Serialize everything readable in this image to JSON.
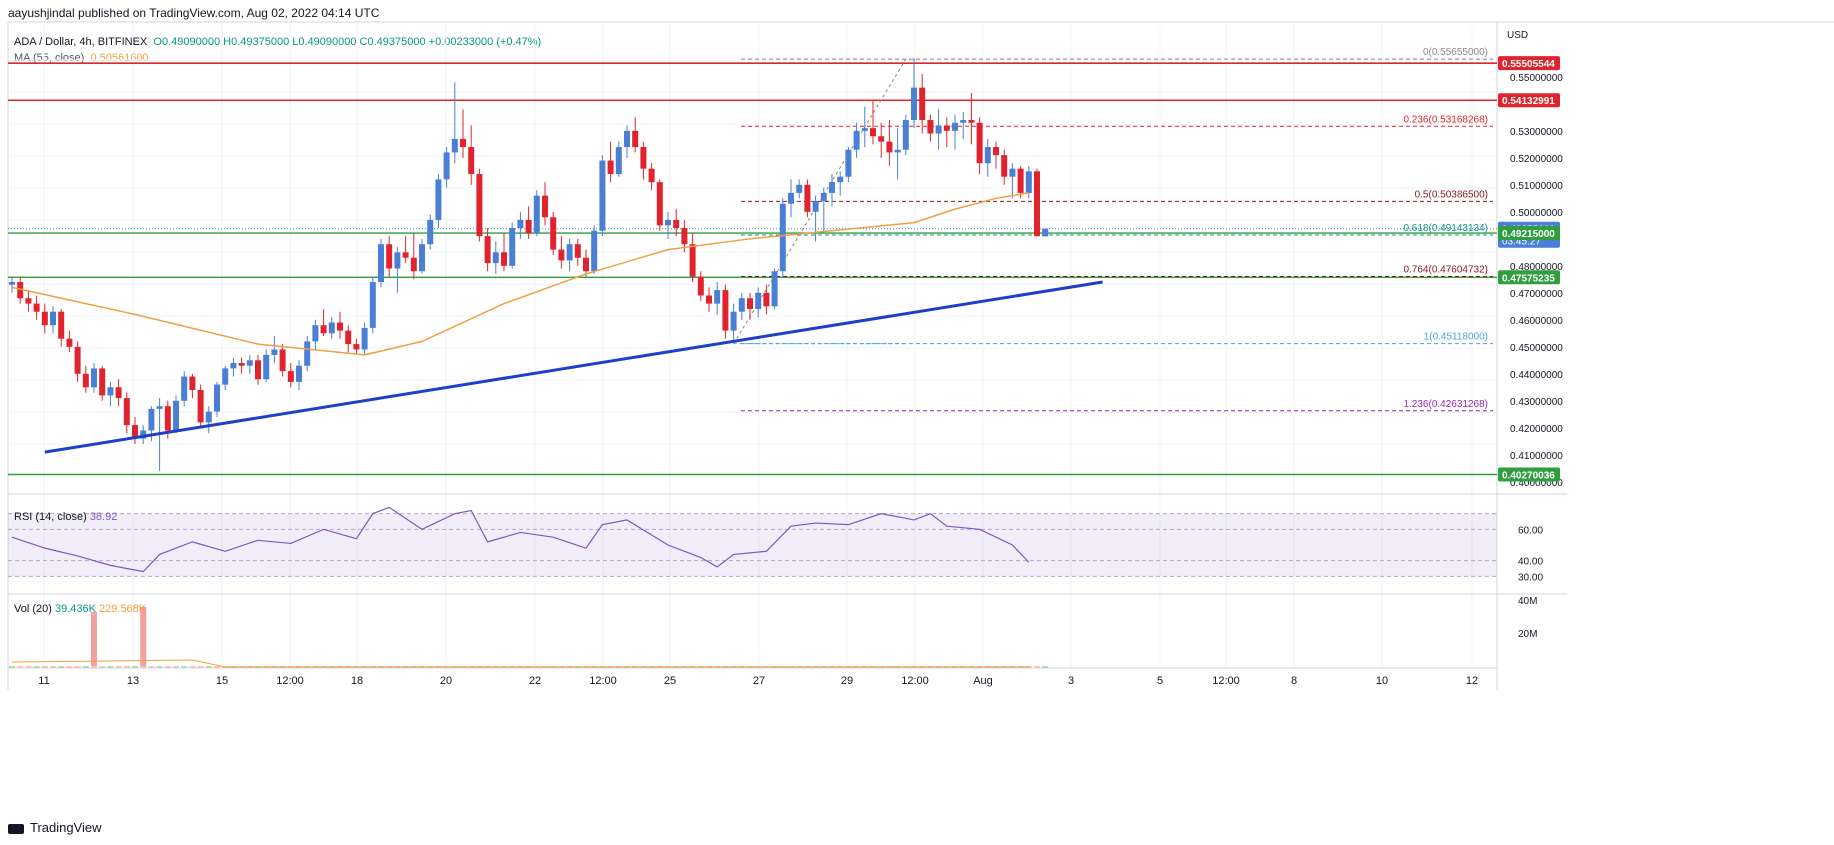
{
  "header": {
    "published": "aayushjindal published on TradingView.com, Aug 02, 2022 04:14 UTC",
    "symbol": "ADA / Dollar, 4h, BITFINEX",
    "ohlc": "O0.49090000 H0.49375000 L0.49090000 C0.49375000 +0.00233000 (+0.47%)",
    "ma_label": "MA (55, close)",
    "ma_value": "0.50561600",
    "rsi_label": "RSI (14, close)",
    "rsi_value": "38.92",
    "vol_label": "Vol (20)",
    "vol_value1": "39.436K",
    "vol_value2": "229.568K"
  },
  "footer": {
    "brand": "TradingView"
  },
  "colors": {
    "up": "#4a7fd4",
    "down": "#e0242e",
    "ma": "#f0a040",
    "rsi": "#7e57c2",
    "trend": "#1f3fc7",
    "support": "#2e9e3e",
    "resistance": "#e0242e"
  },
  "chart_data": {
    "type": "candlestick",
    "price_axis_label": "USD",
    "price_ticks": [
      "0.55000000",
      "0.53000000",
      "0.52000000",
      "0.51000000",
      "0.50000000",
      "0.48000000",
      "0.47000000",
      "0.46000000",
      "0.45000000",
      "0.44000000",
      "0.43000000",
      "0.42000000",
      "0.41000000",
      "0.40000000"
    ],
    "x_ticks": [
      "11",
      "13",
      "15",
      "12:00",
      "18",
      "20",
      "22",
      "12:00",
      "25",
      "27",
      "29",
      "12:00",
      "Aug",
      "3",
      "5",
      "12:00",
      "8",
      "10",
      "12"
    ],
    "price_badges": [
      {
        "value": "0.55505544",
        "kind": "resistance"
      },
      {
        "value": "0.54132991",
        "kind": "resistance"
      },
      {
        "value": "0.49375000",
        "kind": "last",
        "extra": "03:45:27"
      },
      {
        "value": "0.49215000",
        "kind": "support"
      },
      {
        "value": "0.47575235",
        "kind": "support"
      },
      {
        "value": "0.40270036",
        "kind": "support"
      }
    ],
    "horizontal_lines": [
      {
        "price": 0.55505544,
        "kind": "resistance"
      },
      {
        "price": 0.54132991,
        "kind": "resistance"
      },
      {
        "price": 0.49215,
        "kind": "support"
      },
      {
        "price": 0.47575235,
        "kind": "support"
      },
      {
        "price": 0.40270036,
        "kind": "support"
      }
    ],
    "fib_levels": [
      {
        "label": "0(0.55655000)",
        "price": 0.55655,
        "color": "#888888"
      },
      {
        "label": "0.236(0.53168268)",
        "price": 0.53168268,
        "color": "#e0242e"
      },
      {
        "label": "0.5(0.50386500)",
        "price": 0.503865,
        "color": "#8b1a1a"
      },
      {
        "label": "0.618(0.49143134)",
        "price": 0.49143134,
        "color": "#089981"
      },
      {
        "label": "0.764(0.47604732)",
        "price": 0.47604732,
        "color": "#8b1a1a"
      },
      {
        "label": "1(0.45118000)",
        "price": 0.45118,
        "color": "#4aa3df"
      },
      {
        "label": "1.236(0.42631268)",
        "price": 0.42631268,
        "color": "#9c27b0"
      }
    ],
    "trendline": {
      "start": {
        "bar": 4,
        "price": 0.411
      },
      "end": {
        "bar": 133,
        "price": 0.474
      }
    },
    "candles": [
      [
        0.473,
        0.476,
        0.47,
        0.474
      ],
      [
        0.474,
        0.476,
        0.466,
        0.468
      ],
      [
        0.468,
        0.471,
        0.463,
        0.466
      ],
      [
        0.466,
        0.469,
        0.46,
        0.463
      ],
      [
        0.463,
        0.466,
        0.455,
        0.458
      ],
      [
        0.458,
        0.465,
        0.455,
        0.463
      ],
      [
        0.463,
        0.464,
        0.45,
        0.453
      ],
      [
        0.453,
        0.456,
        0.448,
        0.45
      ],
      [
        0.45,
        0.452,
        0.437,
        0.44
      ],
      [
        0.44,
        0.443,
        0.433,
        0.435
      ],
      [
        0.435,
        0.444,
        0.433,
        0.442
      ],
      [
        0.442,
        0.443,
        0.43,
        0.432
      ],
      [
        0.432,
        0.437,
        0.428,
        0.435
      ],
      [
        0.435,
        0.438,
        0.428,
        0.431
      ],
      [
        0.431,
        0.433,
        0.418,
        0.421
      ],
      [
        0.421,
        0.424,
        0.414,
        0.416
      ],
      [
        0.416,
        0.421,
        0.414,
        0.419
      ],
      [
        0.419,
        0.428,
        0.415,
        0.427
      ],
      [
        0.427,
        0.431,
        0.404,
        0.428
      ],
      [
        0.428,
        0.43,
        0.416,
        0.419
      ],
      [
        0.419,
        0.432,
        0.418,
        0.43
      ],
      [
        0.43,
        0.441,
        0.428,
        0.439
      ],
      [
        0.439,
        0.44,
        0.431,
        0.434
      ],
      [
        0.434,
        0.436,
        0.42,
        0.422
      ],
      [
        0.422,
        0.428,
        0.418,
        0.426
      ],
      [
        0.426,
        0.437,
        0.424,
        0.436
      ],
      [
        0.436,
        0.443,
        0.434,
        0.442
      ],
      [
        0.442,
        0.446,
        0.439,
        0.444
      ],
      [
        0.444,
        0.446,
        0.44,
        0.443
      ],
      [
        0.443,
        0.447,
        0.44,
        0.445
      ],
      [
        0.445,
        0.447,
        0.436,
        0.438
      ],
      [
        0.438,
        0.449,
        0.437,
        0.447
      ],
      [
        0.447,
        0.454,
        0.444,
        0.449
      ],
      [
        0.449,
        0.451,
        0.439,
        0.441
      ],
      [
        0.441,
        0.444,
        0.435,
        0.437
      ],
      [
        0.437,
        0.445,
        0.434,
        0.443
      ],
      [
        0.443,
        0.454,
        0.441,
        0.452
      ],
      [
        0.452,
        0.46,
        0.449,
        0.458
      ],
      [
        0.458,
        0.464,
        0.454,
        0.455
      ],
      [
        0.455,
        0.461,
        0.453,
        0.459
      ],
      [
        0.459,
        0.463,
        0.453,
        0.456
      ],
      [
        0.456,
        0.458,
        0.448,
        0.451
      ],
      [
        0.451,
        0.453,
        0.447,
        0.449
      ],
      [
        0.449,
        0.459,
        0.447,
        0.457
      ],
      [
        0.457,
        0.476,
        0.455,
        0.474
      ],
      [
        0.474,
        0.49,
        0.472,
        0.488
      ],
      [
        0.488,
        0.491,
        0.476,
        0.479
      ],
      [
        0.479,
        0.487,
        0.47,
        0.485
      ],
      [
        0.485,
        0.491,
        0.481,
        0.483
      ],
      [
        0.483,
        0.492,
        0.475,
        0.478
      ],
      [
        0.478,
        0.49,
        0.477,
        0.488
      ],
      [
        0.488,
        0.499,
        0.486,
        0.497
      ],
      [
        0.497,
        0.514,
        0.494,
        0.512
      ],
      [
        0.512,
        0.524,
        0.509,
        0.522
      ],
      [
        0.522,
        0.548,
        0.518,
        0.527
      ],
      [
        0.527,
        0.538,
        0.52,
        0.524
      ],
      [
        0.524,
        0.532,
        0.51,
        0.514
      ],
      [
        0.514,
        0.516,
        0.489,
        0.491
      ],
      [
        0.491,
        0.494,
        0.478,
        0.481
      ],
      [
        0.481,
        0.489,
        0.477,
        0.485
      ],
      [
        0.485,
        0.492,
        0.478,
        0.48
      ],
      [
        0.48,
        0.496,
        0.479,
        0.494
      ],
      [
        0.494,
        0.5,
        0.49,
        0.497
      ],
      [
        0.497,
        0.502,
        0.49,
        0.492
      ],
      [
        0.492,
        0.508,
        0.491,
        0.506
      ],
      [
        0.506,
        0.511,
        0.495,
        0.498
      ],
      [
        0.498,
        0.5,
        0.484,
        0.486
      ],
      [
        0.486,
        0.491,
        0.479,
        0.482
      ],
      [
        0.482,
        0.49,
        0.478,
        0.488
      ],
      [
        0.488,
        0.49,
        0.48,
        0.483
      ],
      [
        0.483,
        0.486,
        0.476,
        0.478
      ],
      [
        0.478,
        0.495,
        0.477,
        0.493
      ],
      [
        0.493,
        0.521,
        0.491,
        0.519
      ],
      [
        0.519,
        0.526,
        0.511,
        0.514
      ],
      [
        0.514,
        0.526,
        0.513,
        0.524
      ],
      [
        0.524,
        0.532,
        0.52,
        0.53
      ],
      [
        0.53,
        0.535,
        0.522,
        0.524
      ],
      [
        0.524,
        0.526,
        0.512,
        0.516
      ],
      [
        0.516,
        0.518,
        0.508,
        0.511
      ],
      [
        0.511,
        0.512,
        0.493,
        0.495
      ],
      [
        0.495,
        0.5,
        0.49,
        0.497
      ],
      [
        0.497,
        0.501,
        0.491,
        0.494
      ],
      [
        0.494,
        0.497,
        0.485,
        0.488
      ],
      [
        0.488,
        0.492,
        0.474,
        0.476
      ],
      [
        0.476,
        0.478,
        0.467,
        0.469
      ],
      [
        0.469,
        0.472,
        0.463,
        0.466
      ],
      [
        0.466,
        0.474,
        0.462,
        0.471
      ],
      [
        0.471,
        0.473,
        0.453,
        0.456
      ],
      [
        0.456,
        0.466,
        0.452,
        0.463
      ],
      [
        0.463,
        0.47,
        0.46,
        0.468
      ],
      [
        0.468,
        0.47,
        0.46,
        0.464
      ],
      [
        0.464,
        0.472,
        0.461,
        0.47
      ],
      [
        0.47,
        0.473,
        0.462,
        0.465
      ],
      [
        0.465,
        0.479,
        0.464,
        0.478
      ],
      [
        0.478,
        0.505,
        0.476,
        0.503
      ],
      [
        0.503,
        0.512,
        0.498,
        0.507
      ],
      [
        0.507,
        0.512,
        0.505,
        0.51
      ],
      [
        0.51,
        0.512,
        0.498,
        0.5
      ],
      [
        0.5,
        0.506,
        0.489,
        0.504
      ],
      [
        0.504,
        0.509,
        0.492,
        0.507
      ],
      [
        0.507,
        0.514,
        0.502,
        0.511
      ],
      [
        0.511,
        0.515,
        0.506,
        0.513
      ],
      [
        0.513,
        0.524,
        0.511,
        0.523
      ],
      [
        0.523,
        0.533,
        0.52,
        0.53
      ],
      [
        0.53,
        0.539,
        0.524,
        0.531
      ],
      [
        0.531,
        0.541,
        0.525,
        0.528
      ],
      [
        0.528,
        0.533,
        0.52,
        0.526
      ],
      [
        0.526,
        0.534,
        0.517,
        0.522
      ],
      [
        0.522,
        0.531,
        0.512,
        0.523
      ],
      [
        0.523,
        0.536,
        0.521,
        0.534
      ],
      [
        0.534,
        0.557,
        0.531,
        0.546
      ],
      [
        0.546,
        0.551,
        0.529,
        0.534
      ],
      [
        0.534,
        0.536,
        0.526,
        0.529
      ],
      [
        0.529,
        0.538,
        0.523,
        0.532
      ],
      [
        0.532,
        0.535,
        0.524,
        0.53
      ],
      [
        0.53,
        0.536,
        0.523,
        0.533
      ],
      [
        0.533,
        0.537,
        0.527,
        0.534
      ],
      [
        0.534,
        0.544,
        0.525,
        0.533
      ],
      [
        0.533,
        0.535,
        0.514,
        0.518
      ],
      [
        0.518,
        0.527,
        0.513,
        0.524
      ],
      [
        0.524,
        0.526,
        0.516,
        0.521
      ],
      [
        0.521,
        0.523,
        0.51,
        0.513
      ],
      [
        0.513,
        0.518,
        0.505,
        0.516
      ],
      [
        0.516,
        0.517,
        0.505,
        0.507
      ],
      [
        0.507,
        0.517,
        0.505,
        0.515
      ],
      [
        0.515,
        0.516,
        0.491,
        0.491
      ],
      [
        0.4909,
        0.49375,
        0.4909,
        0.49375
      ]
    ],
    "ma": [
      [
        0,
        0.472
      ],
      [
        15,
        0.462
      ],
      [
        30,
        0.451
      ],
      [
        43,
        0.447
      ],
      [
        50,
        0.452
      ],
      [
        60,
        0.466
      ],
      [
        70,
        0.477
      ],
      [
        80,
        0.486
      ],
      [
        90,
        0.49
      ],
      [
        100,
        0.493
      ],
      [
        110,
        0.496
      ],
      [
        115,
        0.501
      ],
      [
        120,
        0.505
      ],
      [
        124,
        0.507
      ]
    ],
    "rsi": [
      [
        0,
        55
      ],
      [
        4,
        48
      ],
      [
        8,
        43
      ],
      [
        12,
        37
      ],
      [
        16,
        33
      ],
      [
        18,
        44
      ],
      [
        22,
        52
      ],
      [
        26,
        46
      ],
      [
        30,
        53
      ],
      [
        34,
        51
      ],
      [
        38,
        60
      ],
      [
        42,
        54
      ],
      [
        44,
        70
      ],
      [
        46,
        74
      ],
      [
        50,
        60
      ],
      [
        54,
        70
      ],
      [
        56,
        72
      ],
      [
        58,
        52
      ],
      [
        62,
        58
      ],
      [
        66,
        55
      ],
      [
        70,
        48
      ],
      [
        72,
        63
      ],
      [
        75,
        66
      ],
      [
        80,
        50
      ],
      [
        84,
        42
      ],
      [
        86,
        36
      ],
      [
        88,
        44
      ],
      [
        92,
        46
      ],
      [
        95,
        62
      ],
      [
        98,
        64
      ],
      [
        102,
        63
      ],
      [
        106,
        70
      ],
      [
        110,
        66
      ],
      [
        112,
        70
      ],
      [
        114,
        62
      ],
      [
        118,
        60
      ],
      [
        122,
        50
      ],
      [
        124,
        39
      ]
    ],
    "rsi_levels": [
      70,
      60,
      40,
      30
    ],
    "rsi_ticks": [
      "60.00",
      "40.00",
      "30.00"
    ],
    "vol_ticks": [
      "40M",
      "20M"
    ],
    "volume_spikes": [
      {
        "bar": 10,
        "value": 32
      },
      {
        "bar": 16,
        "value": 35
      }
    ]
  }
}
